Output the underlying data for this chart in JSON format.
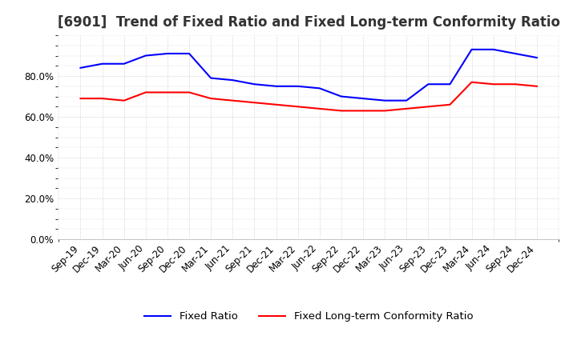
{
  "title": "[6901]  Trend of Fixed Ratio and Fixed Long-term Conformity Ratio",
  "x_labels": [
    "Sep-19",
    "Dec-19",
    "Mar-20",
    "Jun-20",
    "Sep-20",
    "Dec-20",
    "Mar-21",
    "Jun-21",
    "Sep-21",
    "Dec-21",
    "Mar-22",
    "Jun-22",
    "Sep-22",
    "Dec-22",
    "Mar-23",
    "Jun-23",
    "Sep-23",
    "Dec-23",
    "Mar-24",
    "Jun-24",
    "Sep-24",
    "Dec-24"
  ],
  "fixed_ratio": [
    84,
    86,
    86,
    90,
    91,
    91,
    79,
    78,
    76,
    75,
    75,
    74,
    70,
    69,
    68,
    68,
    76,
    76,
    93,
    93,
    91,
    89
  ],
  "fixed_lt_ratio": [
    69,
    69,
    68,
    72,
    72,
    72,
    69,
    68,
    67,
    66,
    65,
    64,
    63,
    63,
    63,
    64,
    65,
    66,
    77,
    76,
    76,
    75
  ],
  "fixed_ratio_color": "#0000FF",
  "fixed_lt_ratio_color": "#FF0000",
  "ylim_min": 0,
  "ylim_max": 100,
  "yticks": [
    0,
    20,
    40,
    60,
    80
  ],
  "background_color": "#FFFFFF",
  "grid_color": "#AAAAAA",
  "title_fontsize": 12,
  "tick_fontsize": 8.5,
  "legend_fontsize": 9.5
}
